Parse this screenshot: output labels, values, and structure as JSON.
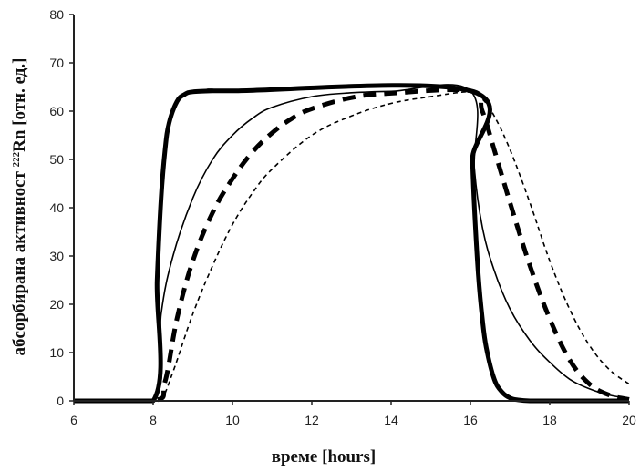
{
  "chart_data": {
    "type": "line",
    "xlabel": "време [hours]",
    "ylabel": {
      "prefix": "абсорбирана активност ",
      "sup": "222",
      "main": "Rn [отн. ед.]"
    },
    "xlim": [
      6,
      20
    ],
    "ylim": [
      0,
      80
    ],
    "x_ticks": [
      "6",
      "8",
      "10",
      "12",
      "14",
      "16",
      "18",
      "20"
    ],
    "y_ticks": [
      "0",
      "10",
      "20",
      "30",
      "40",
      "50",
      "60",
      "70",
      "80"
    ],
    "grid": false,
    "legend": "none",
    "series": [
      {
        "style": "thick-solid",
        "x": [
          6,
          8,
          8.1,
          8.2,
          8.3,
          8.4,
          8.6,
          8.8,
          9.0,
          9.5,
          10,
          16,
          16.05,
          16.1,
          16.2,
          16.3,
          16.4,
          16.6,
          16.8,
          17.0,
          17.2,
          17.5,
          18,
          20
        ],
        "y": [
          0,
          0,
          25,
          42,
          52,
          57.5,
          62,
          63.5,
          64,
          64.2,
          64.2,
          64.2,
          50,
          40,
          26,
          17,
          11,
          4.5,
          1.8,
          0.6,
          0.2,
          0,
          0,
          0
        ]
      },
      {
        "style": "thin-solid",
        "x": [
          6,
          8,
          8.2,
          8.5,
          9.0,
          9.5,
          10,
          10.5,
          11,
          12,
          13,
          14,
          16,
          16.1,
          16.3,
          16.6,
          17.0,
          17.5,
          18,
          18.5,
          19,
          19.5,
          20
        ],
        "y": [
          0,
          0,
          18,
          30,
          42,
          50,
          55,
          58.5,
          60.8,
          63,
          63.8,
          64.1,
          64.2,
          48,
          36,
          27,
          19,
          12.5,
          8,
          4.5,
          2.5,
          1.2,
          0.5
        ]
      },
      {
        "style": "thick-dashed",
        "x": [
          6,
          8,
          8.3,
          8.6,
          9.0,
          9.5,
          10,
          10.5,
          11,
          11.5,
          12,
          13,
          14,
          16,
          16.3,
          16.6,
          17.0,
          17.5,
          18,
          18.5,
          19,
          19.5,
          20
        ],
        "y": [
          0,
          0,
          4,
          17,
          29,
          39,
          46,
          51.5,
          55.5,
          58.5,
          60.5,
          62.8,
          63.7,
          64.2,
          60,
          52,
          41,
          28,
          17,
          8.5,
          3.5,
          1.2,
          0.3
        ]
      },
      {
        "style": "thin-dashed",
        "x": [
          6,
          8,
          8.2,
          8.5,
          9.0,
          9.5,
          10,
          10.5,
          11,
          12,
          13,
          14,
          15,
          16,
          16.3,
          16.6,
          17.0,
          17.5,
          18,
          18.5,
          19,
          19.5,
          20
        ],
        "y": [
          0,
          0,
          0,
          6,
          18,
          28,
          36.5,
          43,
          48,
          55,
          59,
          61.6,
          63,
          64,
          62.5,
          59,
          52,
          41,
          29,
          19,
          11.5,
          6.5,
          3.5
        ]
      }
    ]
  }
}
